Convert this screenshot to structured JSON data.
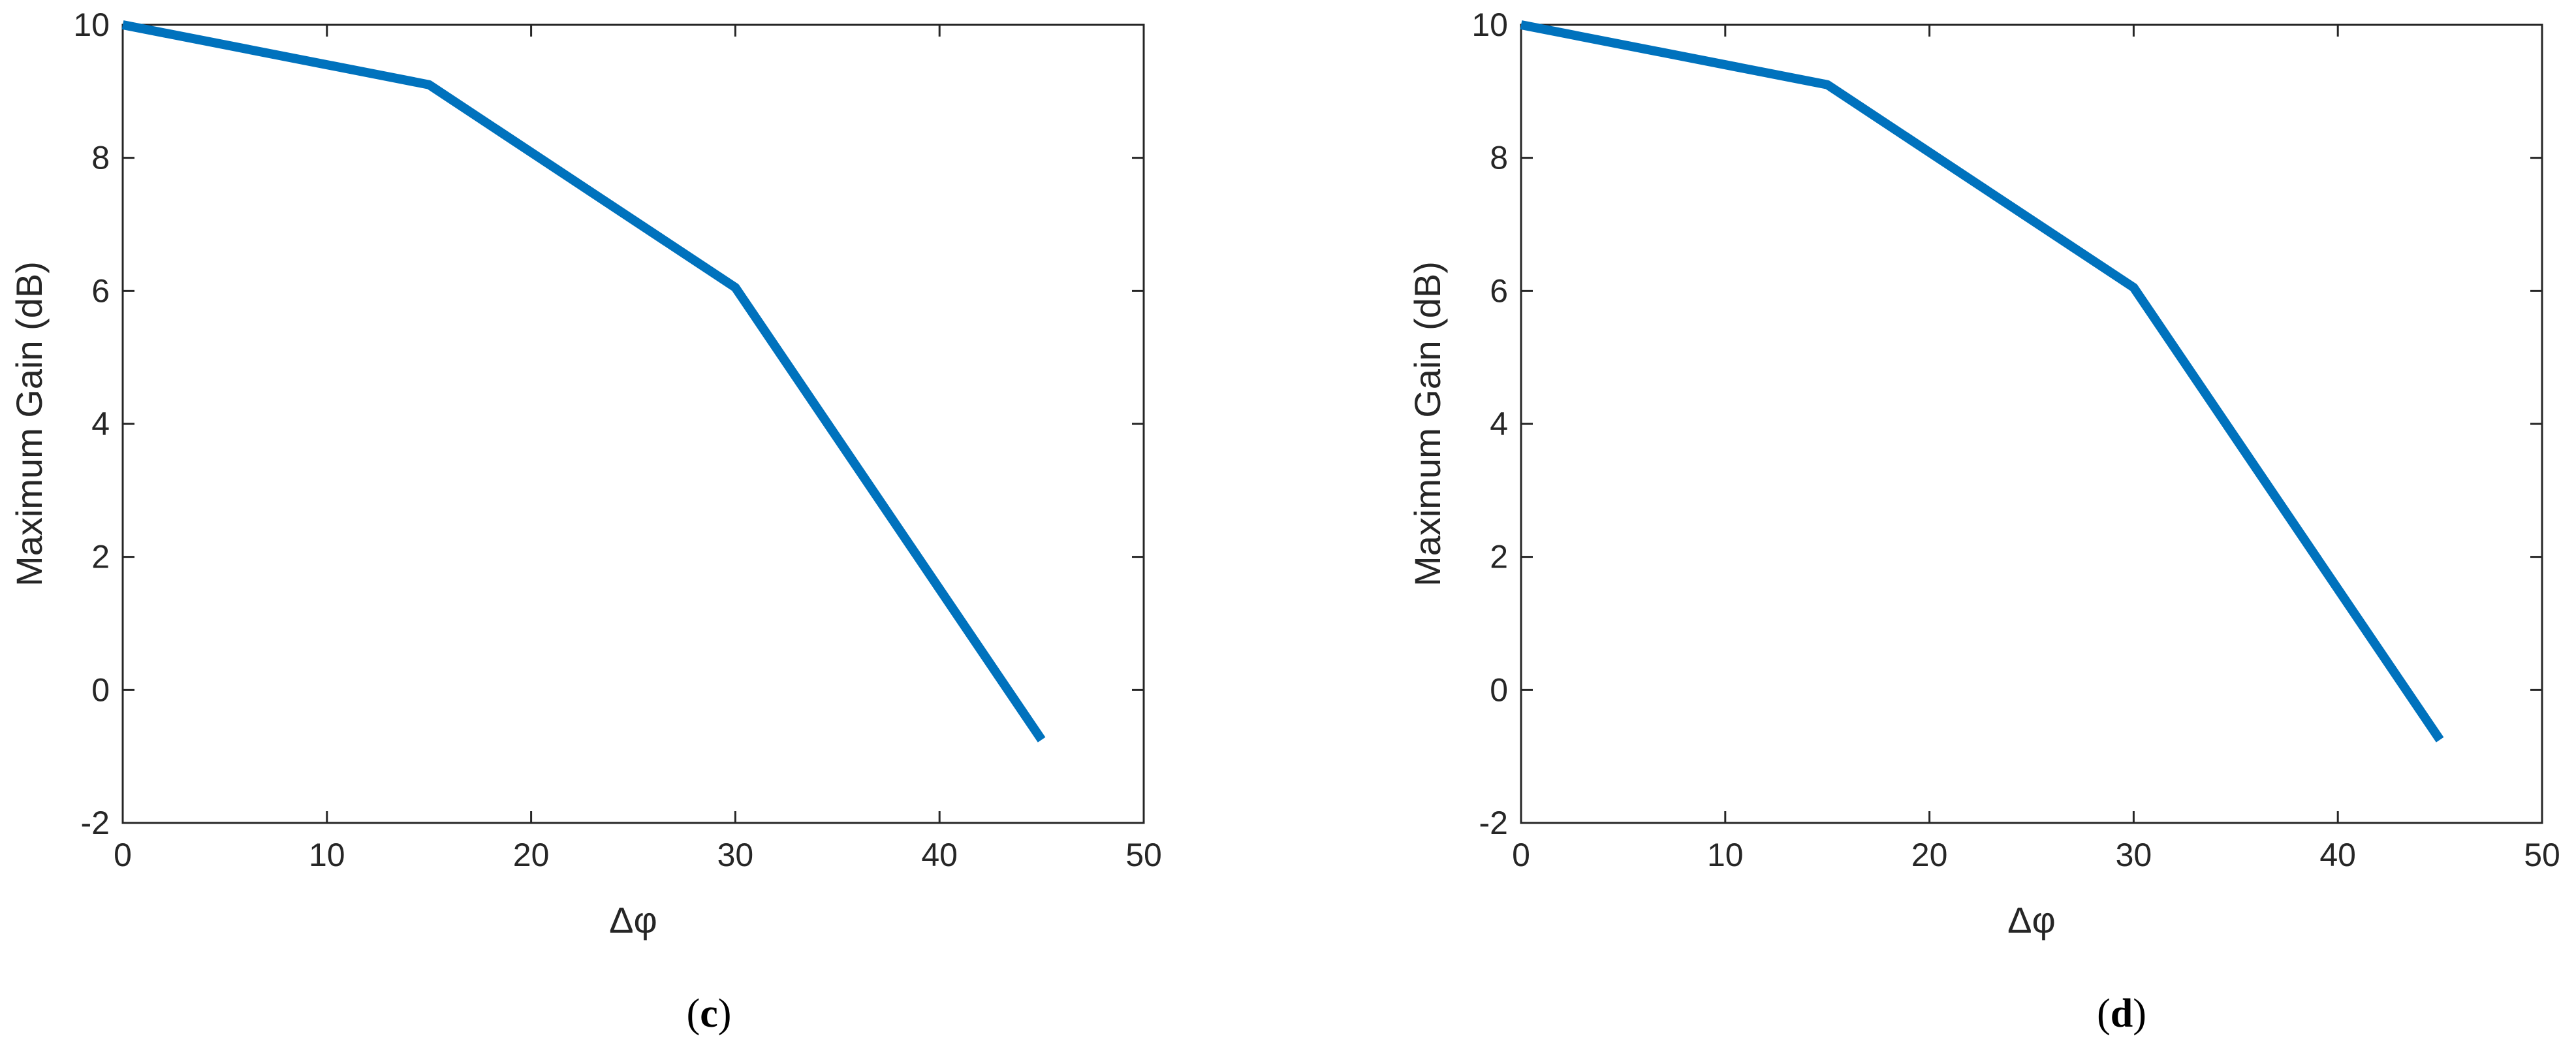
{
  "chart_data": [
    {
      "type": "line",
      "xlabel": "Δφ",
      "ylabel": "Maximum Gain (dB)",
      "xlim": [
        0,
        50
      ],
      "ylim": [
        -2,
        10
      ],
      "xticks": [
        0,
        10,
        20,
        30,
        40,
        50
      ],
      "yticks": [
        -2,
        0,
        2,
        4,
        6,
        8,
        10
      ],
      "grid": false,
      "series": [
        {
          "x": [
            0,
            15,
            30,
            45
          ],
          "y": [
            10,
            9.1,
            6.05,
            -0.75
          ],
          "color": "#0072BD"
        }
      ],
      "caption": {
        "open": "(",
        "letter": "c",
        "close": ")"
      }
    },
    {
      "type": "line",
      "xlabel": "Δφ",
      "ylabel": "Maximum Gain (dB)",
      "xlim": [
        0,
        50
      ],
      "ylim": [
        -2,
        10
      ],
      "xticks": [
        0,
        10,
        20,
        30,
        40,
        50
      ],
      "yticks": [
        -2,
        0,
        2,
        4,
        6,
        8,
        10
      ],
      "grid": false,
      "series": [
        {
          "x": [
            0,
            15,
            30,
            45
          ],
          "y": [
            10,
            9.1,
            6.05,
            -0.75
          ],
          "color": "#0072BD"
        }
      ],
      "caption": {
        "open": "(",
        "letter": "d",
        "close": ")"
      }
    }
  ]
}
